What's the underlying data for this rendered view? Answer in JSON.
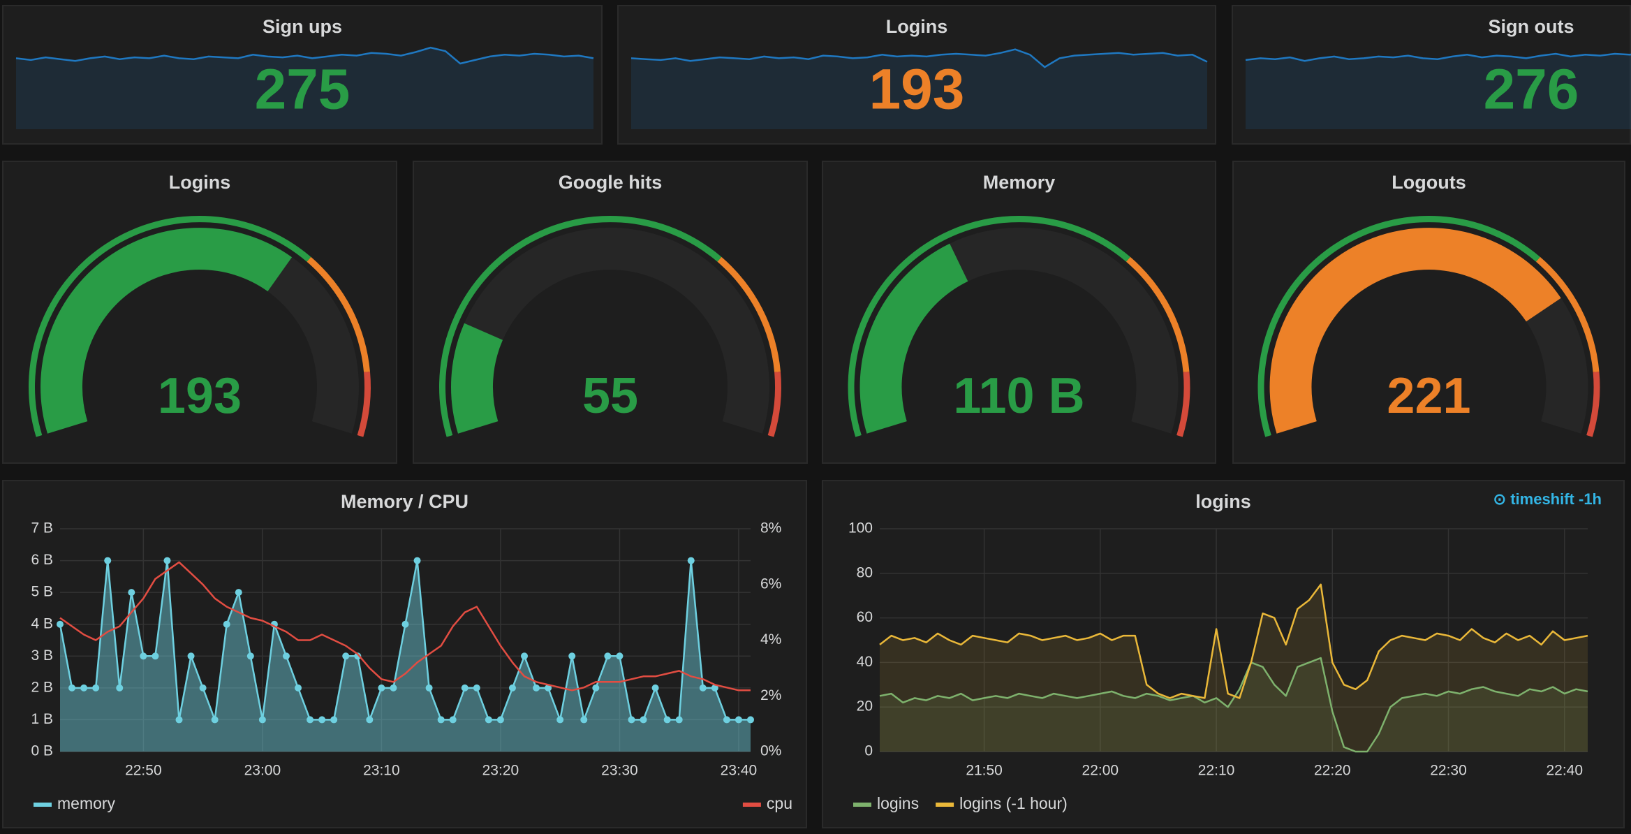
{
  "chart_data": [
    {
      "type": "stat",
      "title": "Sign ups",
      "value": 275,
      "color": "#299c46",
      "sparkline_color": "#1f78c1",
      "sparkline": [
        80,
        78,
        81,
        79,
        77,
        80,
        82,
        79,
        81,
        80,
        83,
        80,
        79,
        82,
        81,
        80,
        84,
        82,
        81,
        83,
        80,
        82,
        84,
        83,
        86,
        85,
        83,
        87,
        92,
        88,
        74,
        78,
        82,
        84,
        83,
        85,
        84,
        82,
        83,
        80
      ]
    },
    {
      "type": "stat",
      "title": "Logins",
      "value": 193,
      "color": "#ed8128",
      "sparkline_color": "#1f78c1",
      "sparkline": [
        80,
        79,
        78,
        80,
        77,
        79,
        81,
        80,
        79,
        82,
        80,
        81,
        79,
        83,
        82,
        80,
        81,
        84,
        82,
        83,
        82,
        84,
        85,
        84,
        83,
        86,
        90,
        84,
        70,
        80,
        83,
        84,
        85,
        86,
        84,
        85,
        86,
        83,
        84,
        76
      ]
    },
    {
      "type": "stat",
      "title": "Sign outs",
      "value": 276,
      "color": "#299c46",
      "sparkline_color": "#1f78c1",
      "sparkline": [
        78,
        80,
        79,
        81,
        77,
        80,
        82,
        79,
        80,
        82,
        81,
        83,
        80,
        79,
        82,
        84,
        81,
        83,
        82,
        80,
        83,
        85,
        82,
        84,
        83,
        85,
        84,
        86,
        83,
        85,
        84,
        82,
        86,
        85,
        83,
        87,
        84,
        86,
        85,
        88
      ]
    },
    {
      "type": "gauge",
      "title": "Logins",
      "value": 193,
      "min": 0,
      "max": 290,
      "thresholds": [
        200,
        260
      ],
      "colors": [
        "#299c46",
        "#ed8128",
        "#d44a3a"
      ]
    },
    {
      "type": "gauge",
      "title": "Google hits",
      "value": 55,
      "min": 0,
      "max": 290,
      "thresholds": [
        200,
        260
      ],
      "colors": [
        "#299c46",
        "#ed8128",
        "#d44a3a"
      ]
    },
    {
      "type": "gauge",
      "title": "Memory",
      "value": 110,
      "value_label": "110 B",
      "min": 0,
      "max": 290,
      "thresholds": [
        200,
        260
      ],
      "colors": [
        "#299c46",
        "#ed8128",
        "#d44a3a"
      ]
    },
    {
      "type": "gauge",
      "title": "Logouts",
      "value": 221,
      "min": 0,
      "max": 290,
      "thresholds": [
        200,
        260
      ],
      "colors": [
        "#299c46",
        "#ed8128",
        "#d44a3a"
      ]
    },
    {
      "type": "line",
      "title": "Memory / CPU",
      "grid": true,
      "x": [
        "22:43",
        "22:44",
        "22:45",
        "22:46",
        "22:47",
        "22:48",
        "22:49",
        "22:50",
        "22:51",
        "22:52",
        "22:53",
        "22:54",
        "22:55",
        "22:56",
        "22:57",
        "22:58",
        "22:59",
        "23:00",
        "23:01",
        "23:02",
        "23:03",
        "23:04",
        "23:05",
        "23:06",
        "23:07",
        "23:08",
        "23:09",
        "23:10",
        "23:11",
        "23:12",
        "23:13",
        "23:14",
        "23:15",
        "23:16",
        "23:17",
        "23:18",
        "23:19",
        "23:20",
        "23:21",
        "23:22",
        "23:23",
        "23:24",
        "23:25",
        "23:26",
        "23:27",
        "23:28",
        "23:29",
        "23:30",
        "23:31",
        "23:32",
        "23:33",
        "23:34",
        "23:35",
        "23:36",
        "23:37",
        "23:38",
        "23:39",
        "23:40",
        "23:41"
      ],
      "xlim": [
        "22:43",
        "23:41"
      ],
      "xticks": [
        "22:50",
        "23:00",
        "23:10",
        "23:20",
        "23:30",
        "23:40"
      ],
      "ylim": [
        0,
        7
      ],
      "yticks": [
        {
          "value": 0,
          "label": "0 B"
        },
        {
          "value": 1,
          "label": "1 B"
        },
        {
          "value": 2,
          "label": "2 B"
        },
        {
          "value": 3,
          "label": "3 B"
        },
        {
          "value": 4,
          "label": "4 B"
        },
        {
          "value": 5,
          "label": "5 B"
        },
        {
          "value": 6,
          "label": "6 B"
        },
        {
          "value": 7,
          "label": "7 B"
        }
      ],
      "y2lim": [
        0,
        8
      ],
      "y2ticks": [
        {
          "value": 0,
          "label": "0%"
        },
        {
          "value": 2,
          "label": "2%"
        },
        {
          "value": 4,
          "label": "4%"
        },
        {
          "value": 6,
          "label": "6%"
        },
        {
          "value": 8,
          "label": "8%"
        }
      ],
      "series": [
        {
          "name": "memory",
          "color": "#6ed0e0",
          "fill": true,
          "points": true,
          "values": [
            4,
            2,
            2,
            2,
            6,
            2,
            5,
            3,
            3,
            6,
            1,
            3,
            2,
            1,
            4,
            5,
            3,
            1,
            4,
            3,
            2,
            1,
            1,
            1,
            3,
            3,
            1,
            2,
            2,
            4,
            6,
            2,
            1,
            1,
            2,
            2,
            1,
            1,
            2,
            3,
            2,
            2,
            1,
            3,
            1,
            2,
            3,
            3,
            1,
            1,
            2,
            1,
            1,
            6,
            2,
            2,
            1,
            1,
            1
          ]
        },
        {
          "name": "cpu",
          "color": "#e24d42",
          "axis": "y2",
          "values": [
            4.8,
            4.5,
            4.2,
            4.0,
            4.3,
            4.5,
            5.0,
            5.5,
            6.2,
            6.5,
            6.8,
            6.4,
            6.0,
            5.5,
            5.2,
            5.0,
            4.8,
            4.7,
            4.5,
            4.3,
            4.0,
            4.0,
            4.2,
            4.0,
            3.8,
            3.5,
            3.0,
            2.6,
            2.5,
            2.8,
            3.2,
            3.5,
            3.8,
            4.5,
            5.0,
            5.2,
            4.5,
            3.8,
            3.2,
            2.7,
            2.5,
            2.4,
            2.3,
            2.2,
            2.3,
            2.5,
            2.5,
            2.5,
            2.6,
            2.7,
            2.7,
            2.8,
            2.9,
            2.7,
            2.6,
            2.4,
            2.3,
            2.2,
            2.2
          ]
        }
      ]
    },
    {
      "type": "line",
      "title": "logins",
      "annotation": "⊙ timeshift -1h",
      "grid": true,
      "x": [
        "21:41",
        "21:42",
        "21:43",
        "21:44",
        "21:45",
        "21:46",
        "21:47",
        "21:48",
        "21:49",
        "21:50",
        "21:51",
        "21:52",
        "21:53",
        "21:54",
        "21:55",
        "21:56",
        "21:57",
        "21:58",
        "21:59",
        "22:00",
        "22:01",
        "22:02",
        "22:03",
        "22:04",
        "22:05",
        "22:06",
        "22:07",
        "22:08",
        "22:09",
        "22:10",
        "22:11",
        "22:12",
        "22:13",
        "22:14",
        "22:15",
        "22:16",
        "22:17",
        "22:18",
        "22:19",
        "22:20",
        "22:21",
        "22:22",
        "22:23",
        "22:24",
        "22:25",
        "22:26",
        "22:27",
        "22:28",
        "22:29",
        "22:30",
        "22:31",
        "22:32",
        "22:33",
        "22:34",
        "22:35",
        "22:36",
        "22:37",
        "22:38",
        "22:39",
        "22:40",
        "22:41",
        "22:42"
      ],
      "xlim": [
        "21:41",
        "22:42"
      ],
      "xticks": [
        "21:50",
        "22:00",
        "22:10",
        "22:20",
        "22:30",
        "22:40"
      ],
      "ylim": [
        0,
        100
      ],
      "yticks": [
        0,
        20,
        40,
        60,
        80,
        100
      ],
      "series": [
        {
          "name": "logins",
          "color": "#7eb26d",
          "fill": true,
          "values": [
            25,
            26,
            22,
            24,
            23,
            25,
            24,
            26,
            23,
            24,
            25,
            24,
            26,
            25,
            24,
            26,
            25,
            24,
            25,
            26,
            27,
            25,
            24,
            26,
            25,
            23,
            24,
            25,
            22,
            24,
            20,
            28,
            40,
            38,
            30,
            25,
            38,
            40,
            42,
            18,
            2,
            0,
            0,
            8,
            20,
            24,
            25,
            26,
            25,
            27,
            26,
            28,
            29,
            27,
            26,
            25,
            28,
            27,
            29,
            26,
            28,
            27
          ]
        },
        {
          "name": "logins (-1 hour)",
          "color": "#eab839",
          "fill": true,
          "values": [
            48,
            52,
            50,
            51,
            49,
            53,
            50,
            48,
            52,
            51,
            50,
            49,
            53,
            52,
            50,
            51,
            52,
            50,
            51,
            53,
            50,
            52,
            52,
            30,
            26,
            24,
            26,
            25,
            24,
            55,
            26,
            24,
            40,
            62,
            60,
            48,
            64,
            68,
            75,
            40,
            30,
            28,
            32,
            45,
            50,
            52,
            51,
            50,
            53,
            52,
            50,
            55,
            51,
            49,
            53,
            50,
            52,
            48,
            54,
            50,
            51,
            52
          ]
        }
      ]
    }
  ]
}
